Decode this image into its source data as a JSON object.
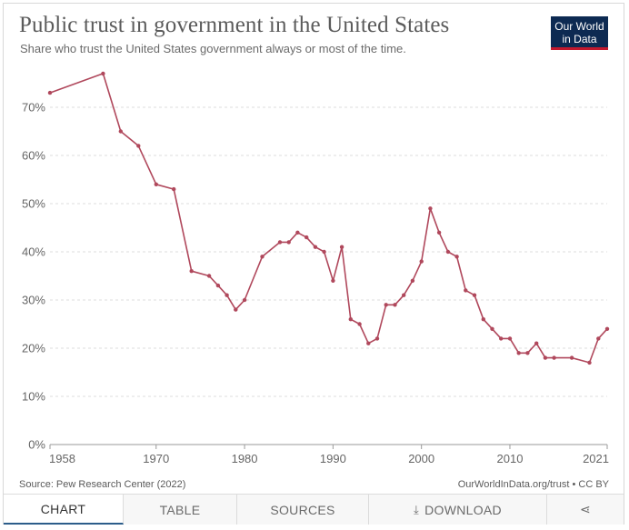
{
  "header": {
    "title": "Public trust in government in the United States",
    "subtitle": "Share who trust the United States government always or most of the time.",
    "logo_line1": "Our World",
    "logo_line2": "in Data"
  },
  "chart_data": {
    "type": "line",
    "title": "Public trust in government in the United States",
    "subtitle": "Share who trust the United States government always or most of the time.",
    "xlabel": "",
    "ylabel": "",
    "xlim": [
      1958,
      2021
    ],
    "ylim": [
      0,
      70
    ],
    "y_ticks": [
      0,
      10,
      20,
      30,
      40,
      50,
      60,
      70
    ],
    "y_tick_labels": [
      "0%",
      "10%",
      "20%",
      "30%",
      "40%",
      "50%",
      "60%",
      "70%"
    ],
    "x_ticks": [
      1958,
      1970,
      1980,
      1990,
      2000,
      2010,
      2021
    ],
    "x_tick_labels": [
      "1958",
      "1970",
      "1980",
      "1990",
      "2000",
      "2010",
      "2021"
    ],
    "grid": "horizontal dashed",
    "line_color": "#b0485c",
    "series": [
      {
        "x": [
          1958,
          1964,
          1966,
          1968,
          1970,
          1972,
          1974,
          1976,
          1977,
          1978,
          1979,
          1980,
          1982,
          1984,
          1985,
          1986,
          1987,
          1988,
          1989,
          1990,
          1991,
          1992,
          1993,
          1994,
          1995,
          1996,
          1997,
          1998,
          1999,
          2000,
          2001,
          2002,
          2003,
          2004,
          2005,
          2006,
          2007,
          2008,
          2009,
          2010,
          2011,
          2012,
          2013,
          2014,
          2015,
          2017,
          2019,
          2020,
          2021
        ],
        "values": [
          73,
          77,
          65,
          62,
          54,
          53,
          36,
          35,
          33,
          31,
          28,
          30,
          39,
          42,
          42,
          44,
          43,
          41,
          40,
          34,
          41,
          26,
          25,
          21,
          22,
          29,
          29,
          31,
          34,
          38,
          49,
          44,
          40,
          39,
          32,
          31,
          26,
          24,
          22,
          22,
          19,
          19,
          21,
          18,
          18,
          18,
          17,
          22,
          24
        ]
      }
    ]
  },
  "footer": {
    "source_label": "Source:",
    "source": "Pew Research Center (2022)",
    "url": "OurWorldInData.org/trust",
    "license": "• CC BY"
  },
  "tabs": {
    "chart": "CHART",
    "table": "TABLE",
    "sources": "SOURCES",
    "download": "DOWNLOAD",
    "download_icon": "⤓",
    "share_icon": "⋖"
  },
  "colors": {
    "logo_bg": "#0d2a52",
    "logo_accent": "#c3182d",
    "line": "#b0485c"
  }
}
